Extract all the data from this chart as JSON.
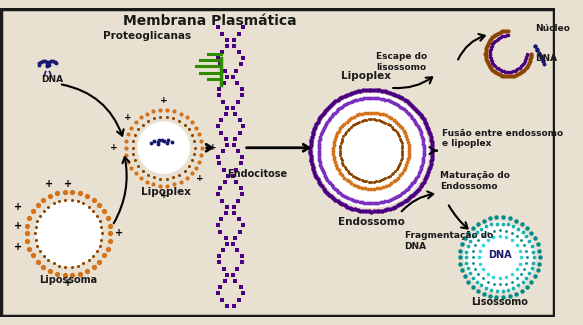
{
  "title": "Membrana Plasmática",
  "bg_color": "#e8e0d0",
  "border_color": "#1a1a1a",
  "text_color": "#1a1a1a",
  "labels": {
    "proteoglicanas": "Proteoglicanas",
    "dna": "DNA",
    "lipossoma": "Lipossoma",
    "lipoplex": "Lipoplex",
    "endocitose": "Endocitose",
    "lipoplex2": "Lipoplex",
    "endossomo": "Endossomo",
    "fusao": "Fusão entre endossomo\ne lipoplex",
    "maturacao": "Maturação do\nEndossomo",
    "fragmentacao": "Fragmentação do\nDNA",
    "escape": "Escape do\nlisossomo",
    "nucleo": "Núcleo",
    "lisossomo": "Lisossomo",
    "dna2": "DNA",
    "dna3": "DNA"
  },
  "colors": {
    "orange": "#d4721a",
    "dark_orange": "#8B4500",
    "purple": "#4B0082",
    "mid_purple": "#7B2FBE",
    "light_purple": "#9B59B6",
    "teal": "#008B8B",
    "light_teal": "#20B2AA",
    "cyan": "#00CED1",
    "navy": "#191970",
    "green": "#2E8B00",
    "dark_green": "#145200",
    "white": "#ffffff",
    "black": "#000000",
    "cream": "#F5F0E8",
    "dot_purple": "#6A0DAD",
    "maroon": "#4a0030"
  },
  "figsize": [
    5.83,
    3.25
  ],
  "dpi": 100
}
